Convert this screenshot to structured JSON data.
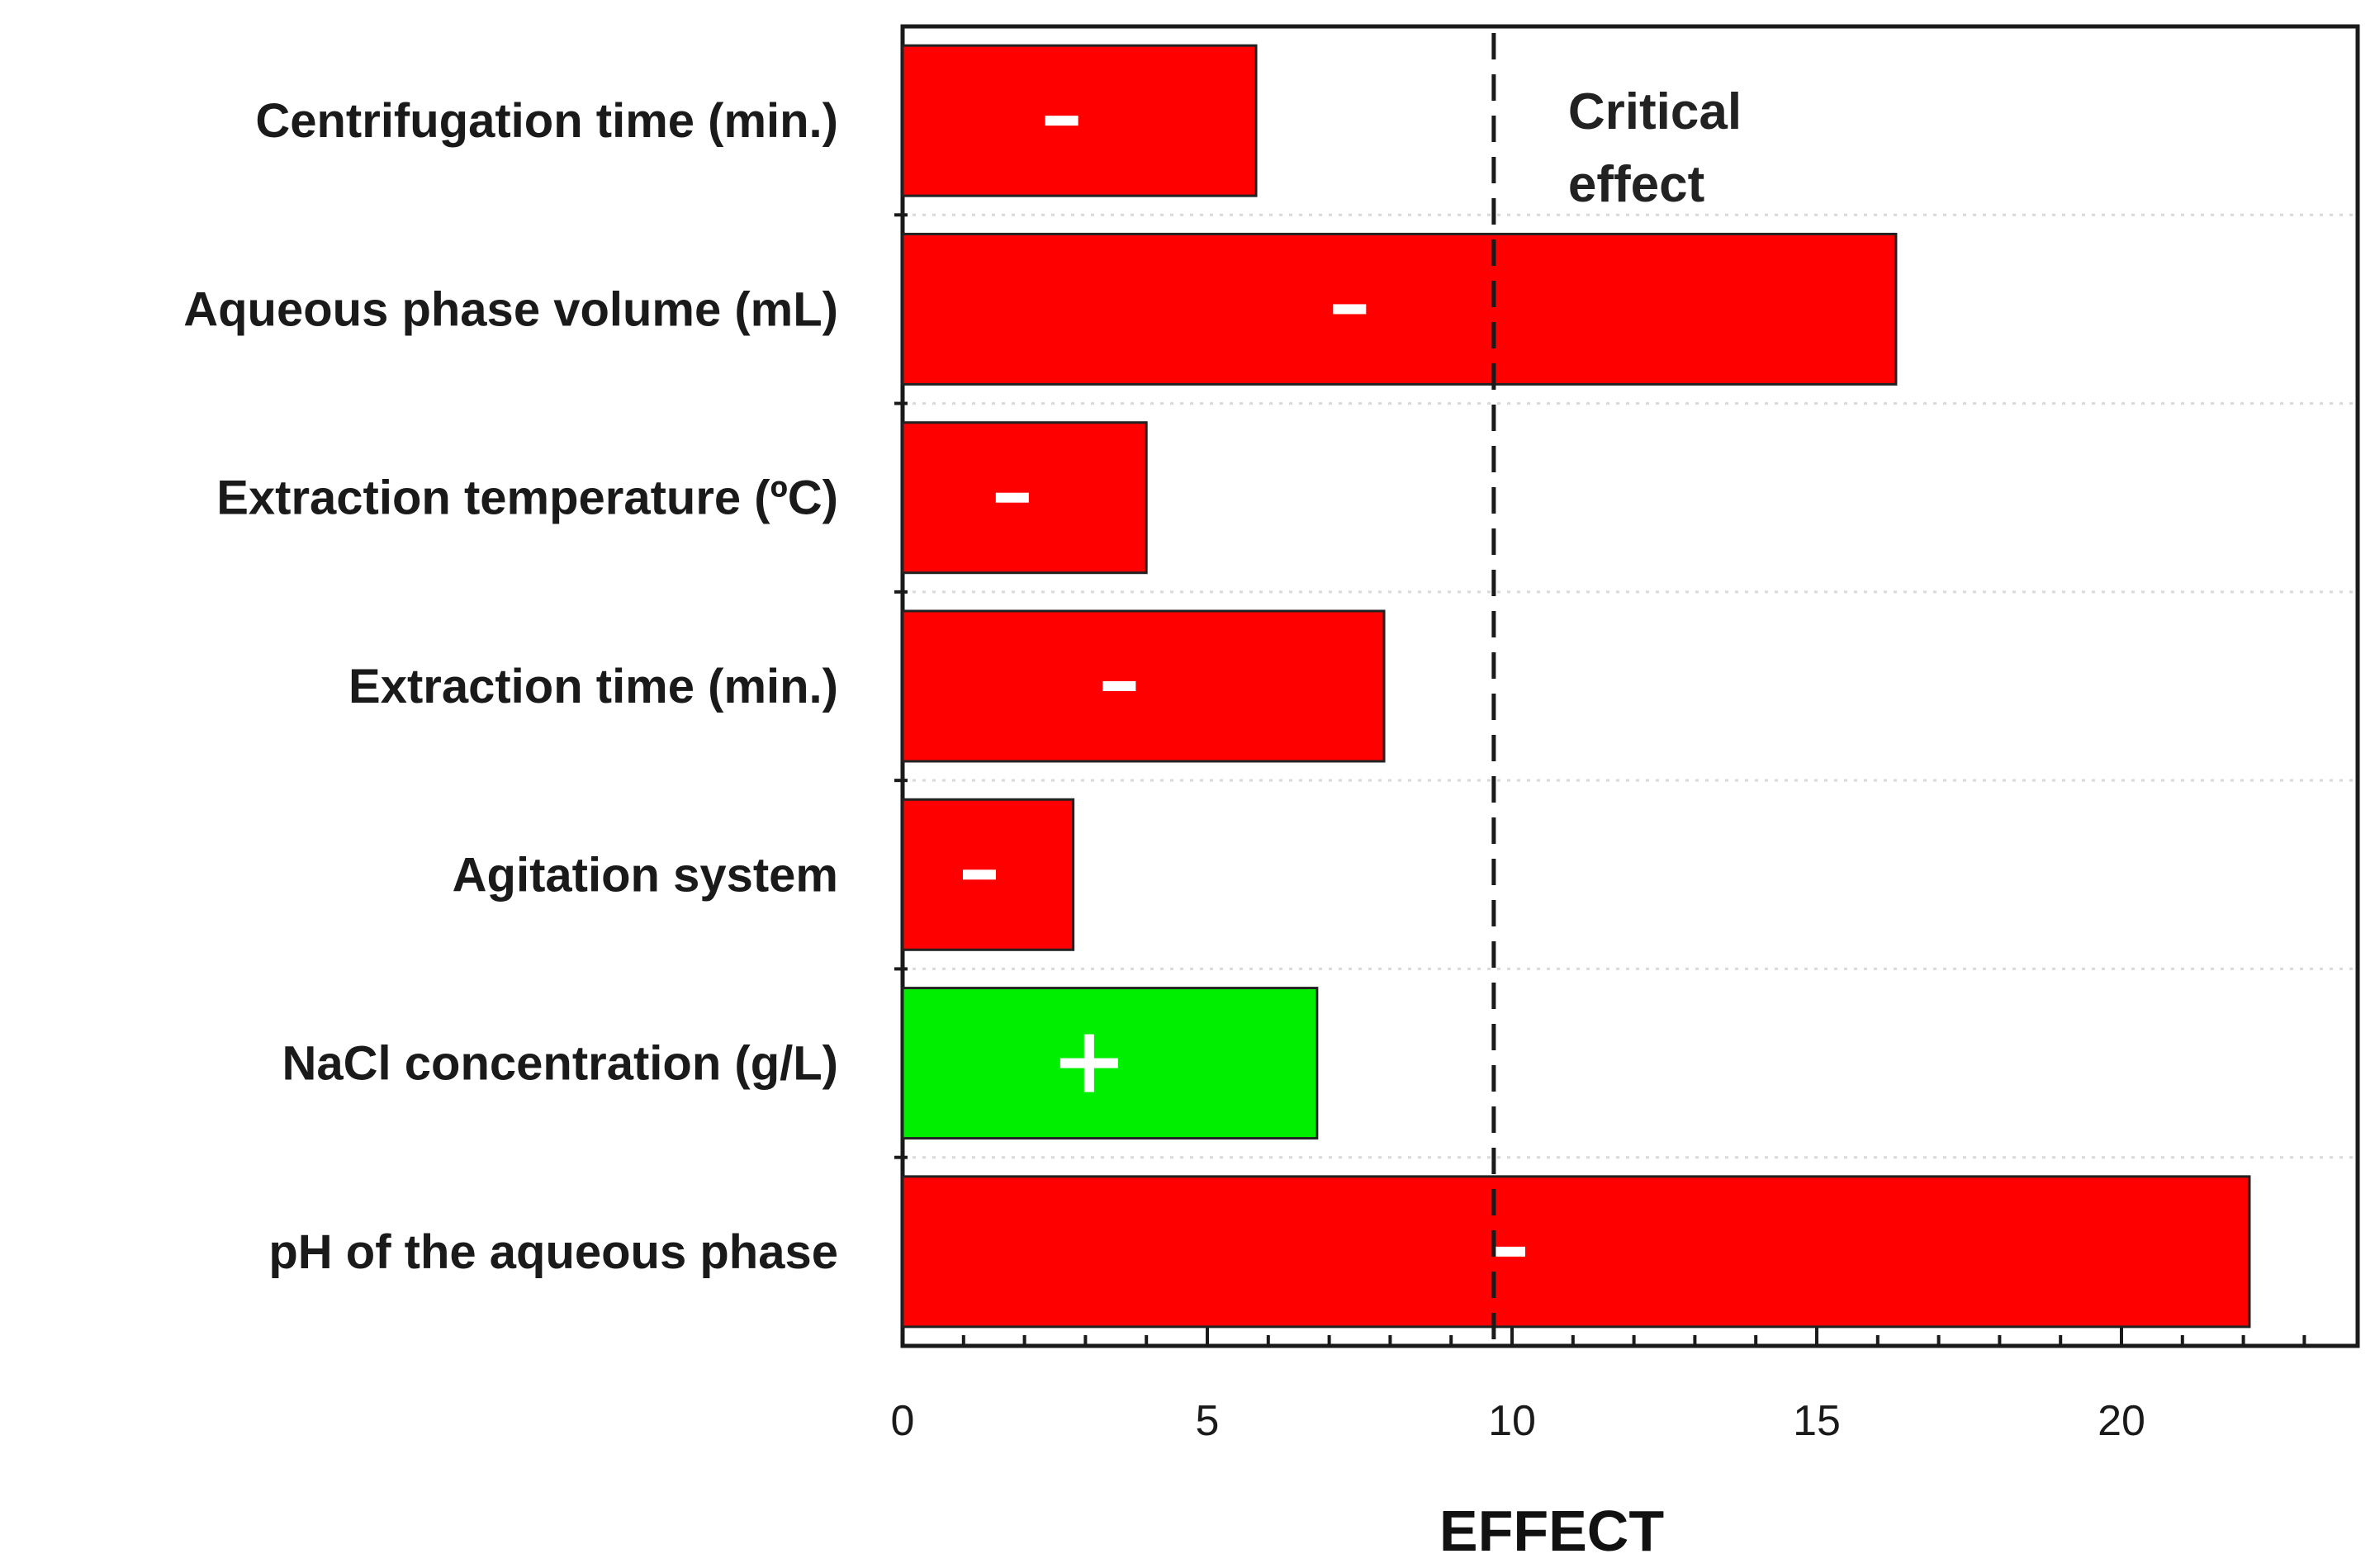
{
  "chart_data": {
    "type": "bar",
    "orientation": "horizontal",
    "title": "",
    "xlabel": "EFFECT",
    "ylabel": "",
    "xlim": [
      0,
      23
    ],
    "xticks": [
      0,
      5,
      10,
      15,
      20
    ],
    "xtick_labels": [
      "0",
      "5",
      "10",
      "15",
      "20"
    ],
    "categories": [
      "Centrifugation time (min.)",
      "Aqueous phase volume (mL)",
      "Extraction temperature (ºC)",
      "Extraction time (min.)",
      "Agitation system",
      "NaCl concentration (g/L)",
      "pH of the aqueous phase"
    ],
    "values": [
      5.8,
      16.3,
      4.0,
      7.9,
      2.8,
      6.8,
      22.1
    ],
    "signs": [
      "-",
      "-",
      "-",
      "-",
      "-",
      "+",
      "-"
    ],
    "critical_effect": 9.7,
    "critical_label_line1": "Critical",
    "critical_label_line2": "effect",
    "colors": {
      "negative": "#ff0000",
      "positive": "#00ee00",
      "bar_border": "#222222",
      "sign_mark": "#ffffff",
      "critical_line": "#1a1a1a",
      "grid": "#d9d9d9"
    },
    "grid": "horizontal-dotted"
  }
}
